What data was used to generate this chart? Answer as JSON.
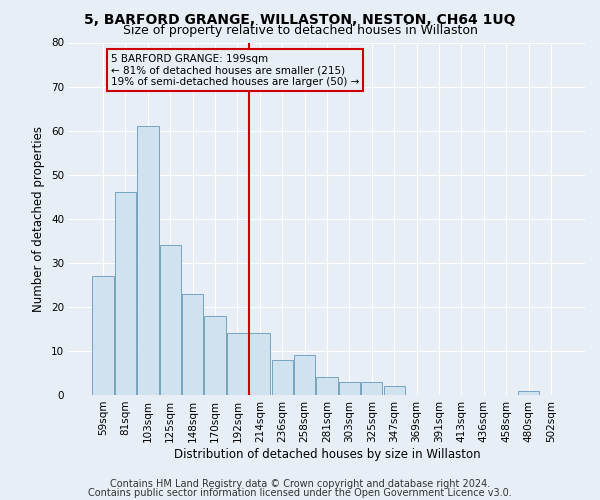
{
  "title": "5, BARFORD GRANGE, WILLASTON, NESTON, CH64 1UQ",
  "subtitle": "Size of property relative to detached houses in Willaston",
  "xlabel": "Distribution of detached houses by size in Willaston",
  "ylabel": "Number of detached properties",
  "bar_color": "#d0e2f0",
  "bar_edge_color": "#6699bb",
  "categories": [
    "59sqm",
    "81sqm",
    "103sqm",
    "125sqm",
    "148sqm",
    "170sqm",
    "192sqm",
    "214sqm",
    "236sqm",
    "258sqm",
    "281sqm",
    "303sqm",
    "325sqm",
    "347sqm",
    "369sqm",
    "391sqm",
    "413sqm",
    "436sqm",
    "458sqm",
    "480sqm",
    "502sqm"
  ],
  "values": [
    27,
    46,
    61,
    34,
    23,
    18,
    14,
    14,
    8,
    9,
    4,
    3,
    3,
    2,
    0,
    0,
    0,
    0,
    0,
    1,
    0
  ],
  "ylim": [
    0,
    80
  ],
  "yticks": [
    0,
    10,
    20,
    30,
    40,
    50,
    60,
    70,
    80
  ],
  "vline_x": 6.5,
  "vline_color": "#cc0000",
  "annotation_text": "5 BARFORD GRANGE: 199sqm\n← 81% of detached houses are smaller (215)\n19% of semi-detached houses are larger (50) →",
  "annotation_box_color": "#cc0000",
  "footer_line1": "Contains HM Land Registry data © Crown copyright and database right 2024.",
  "footer_line2": "Contains public sector information licensed under the Open Government Licence v3.0.",
  "bg_color": "#e8eef5",
  "plot_bg_color": "#e8eef5",
  "grid_color": "#ffffff",
  "title_fontsize": 10,
  "subtitle_fontsize": 9,
  "axis_label_fontsize": 8.5,
  "tick_fontsize": 7.5,
  "footer_fontsize": 7
}
